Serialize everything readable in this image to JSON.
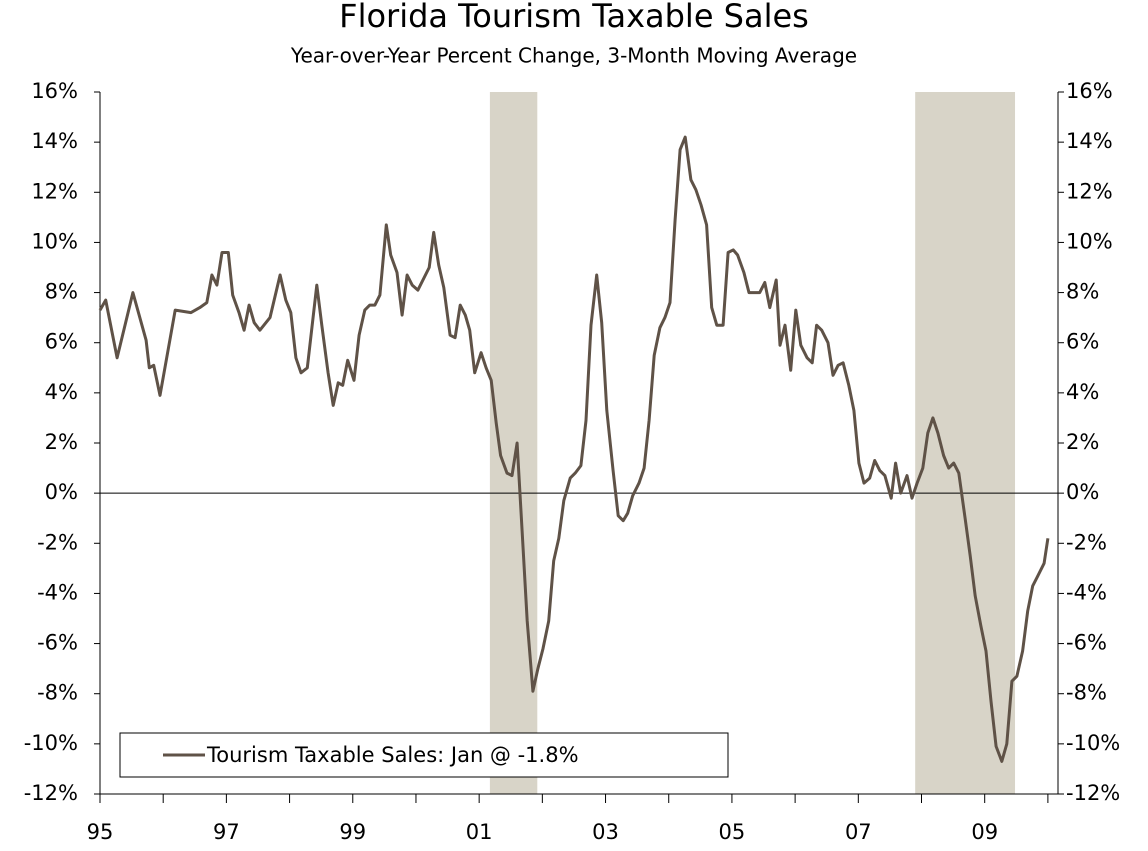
{
  "chart_data": {
    "type": "line",
    "title": "Florida Tourism Taxable Sales",
    "subtitle": "Year-over-Year Percent Change, 3-Month Moving Average",
    "series": [
      {
        "name": "Tourism Taxable Sales: Jan @ -1.8%",
        "color": "#5f5247",
        "x": [
          1995.0,
          1995.09,
          1995.27,
          1995.52,
          1995.73,
          1995.78,
          1995.85,
          1995.95,
          1996.19,
          1996.44,
          1996.58,
          1996.69,
          1996.77,
          1996.85,
          1996.93,
          1997.03,
          1997.1,
          1997.2,
          1997.28,
          1997.36,
          1997.44,
          1997.53,
          1997.69,
          1997.85,
          1997.94,
          1998.02,
          1998.1,
          1998.18,
          1998.28,
          1998.43,
          1998.51,
          1998.61,
          1998.69,
          1998.77,
          1998.84,
          1998.92,
          1999.02,
          1999.1,
          1999.19,
          1999.27,
          1999.35,
          1999.43,
          1999.53,
          1999.6,
          1999.7,
          1999.78,
          1999.86,
          1999.94,
          2000.03,
          2000.21,
          2000.28,
          2000.36,
          2000.44,
          2000.54,
          2000.62,
          2000.7,
          2000.78,
          2000.85,
          2000.93,
          2001.03,
          2001.11,
          2001.19,
          2001.27,
          2001.34,
          2001.44,
          2001.52,
          2001.6,
          2001.68,
          2001.76,
          2001.85,
          2001.93,
          2002.01,
          2002.1,
          2002.18,
          2002.26,
          2002.34,
          2002.44,
          2002.52,
          2002.61,
          2002.69,
          2002.77,
          2002.86,
          2002.94,
          2003.02,
          2003.12,
          2003.2,
          2003.28,
          2003.35,
          2003.43,
          2003.53,
          2003.61,
          2003.69,
          2003.77,
          2003.86,
          2003.94,
          2004.02,
          2004.1,
          2004.18,
          2004.26,
          2004.35,
          2004.43,
          2004.51,
          2004.6,
          2004.68,
          2004.76,
          2004.86,
          2004.94,
          2005.02,
          2005.09,
          2005.19,
          2005.27,
          2005.35,
          2005.44,
          2005.52,
          2005.6,
          2005.7,
          2005.76,
          2005.84,
          2005.93,
          2006.01,
          2006.09,
          2006.19,
          2006.27,
          2006.34,
          2006.42,
          2006.52,
          2006.6,
          2006.68,
          2006.76,
          2006.85,
          2006.93,
          2007.01,
          2007.09,
          2007.18,
          2007.26,
          2007.34,
          2007.42,
          2007.52,
          2007.59,
          2007.67,
          2007.77,
          2007.85,
          2007.93,
          2008.02,
          2008.1,
          2008.18,
          2008.26,
          2008.35,
          2008.43,
          2008.51,
          2008.59,
          2008.69,
          2008.77,
          2008.85,
          2008.94,
          2009.02,
          2009.1,
          2009.18,
          2009.27,
          2009.35,
          2009.43,
          2009.51,
          2009.6,
          2009.68,
          2009.76,
          2009.84,
          2009.94,
          2010.0
        ],
        "values": [
          7.3,
          7.7,
          5.4,
          8.0,
          6.1,
          5.0,
          5.1,
          3.9,
          7.3,
          7.2,
          7.4,
          7.6,
          8.7,
          8.3,
          9.6,
          9.6,
          7.9,
          7.2,
          6.5,
          7.5,
          6.8,
          6.5,
          7.0,
          8.7,
          7.7,
          7.2,
          5.4,
          4.8,
          5.0,
          8.3,
          6.7,
          4.8,
          3.5,
          4.4,
          4.3,
          5.3,
          4.5,
          6.3,
          7.3,
          7.5,
          7.5,
          7.9,
          10.7,
          9.5,
          8.8,
          7.1,
          8.7,
          8.3,
          8.1,
          9.0,
          10.4,
          9.1,
          8.2,
          6.3,
          6.2,
          7.5,
          7.1,
          6.5,
          4.8,
          5.6,
          5.0,
          4.5,
          2.8,
          1.5,
          0.8,
          0.7,
          2.0,
          -1.5,
          -5.1,
          -7.9,
          -7.0,
          -6.2,
          -5.1,
          -2.7,
          -1.8,
          -0.3,
          0.6,
          0.8,
          1.1,
          2.9,
          6.7,
          8.7,
          6.8,
          3.3,
          0.9,
          -0.9,
          -1.1,
          -0.8,
          -0.1,
          0.4,
          1.0,
          2.9,
          5.5,
          6.6,
          7.0,
          7.6,
          10.9,
          13.7,
          14.2,
          12.5,
          12.1,
          11.5,
          10.7,
          7.4,
          6.7,
          6.7,
          9.6,
          9.7,
          9.5,
          8.8,
          8.0,
          8.0,
          8.0,
          8.4,
          7.4,
          8.5,
          5.9,
          6.7,
          4.9,
          7.3,
          5.9,
          5.4,
          5.2,
          6.7,
          6.5,
          6.0,
          4.7,
          5.1,
          5.2,
          4.3,
          3.3,
          1.2,
          0.4,
          0.6,
          1.3,
          0.9,
          0.7,
          -0.2,
          1.2,
          0.0,
          0.7,
          -0.2,
          0.4,
          1.0,
          2.4,
          3.0,
          2.4,
          1.5,
          1.0,
          1.2,
          0.8,
          -1.0,
          -2.5,
          -4.1,
          -5.3,
          -6.3,
          -8.3,
          -10.1,
          -10.7,
          -10.0,
          -7.5,
          -7.3,
          -6.3,
          -4.7,
          -3.7,
          -3.3,
          -2.8,
          -1.8
        ]
      }
    ],
    "shaded_periods": [
      [
        2001.17,
        2001.92
      ],
      [
        2007.9,
        2009.48
      ]
    ],
    "xlim": [
      1995,
      2010.16
    ],
    "xticks": [
      {
        "value": 1995,
        "label": "95"
      },
      {
        "value": 1997,
        "label": "97"
      },
      {
        "value": 1999,
        "label": "99"
      },
      {
        "value": 2001,
        "label": "01"
      },
      {
        "value": 2003,
        "label": "03"
      },
      {
        "value": 2005,
        "label": "05"
      },
      {
        "value": 2007,
        "label": "07"
      },
      {
        "value": 2009,
        "label": "09"
      }
    ],
    "xminor_ticks": [
      1996,
      1998,
      2000,
      2002,
      2004,
      2006,
      2008,
      2010
    ],
    "ylim": [
      -12,
      16
    ],
    "yticks": [
      {
        "value": -12,
        "label": "-12%"
      },
      {
        "value": -10,
        "label": "-10%"
      },
      {
        "value": -8,
        "label": "-8%"
      },
      {
        "value": -6,
        "label": "-6%"
      },
      {
        "value": -4,
        "label": "-4%"
      },
      {
        "value": -2,
        "label": "-2%"
      },
      {
        "value": 0,
        "label": "0%"
      },
      {
        "value": 2,
        "label": "2%"
      },
      {
        "value": 4,
        "label": "4%"
      },
      {
        "value": 6,
        "label": "6%"
      },
      {
        "value": 8,
        "label": "8%"
      },
      {
        "value": 10,
        "label": "10%"
      },
      {
        "value": 12,
        "label": "12%"
      },
      {
        "value": 14,
        "label": "14%"
      },
      {
        "value": 16,
        "label": "16%"
      }
    ],
    "legend": "lower left"
  }
}
